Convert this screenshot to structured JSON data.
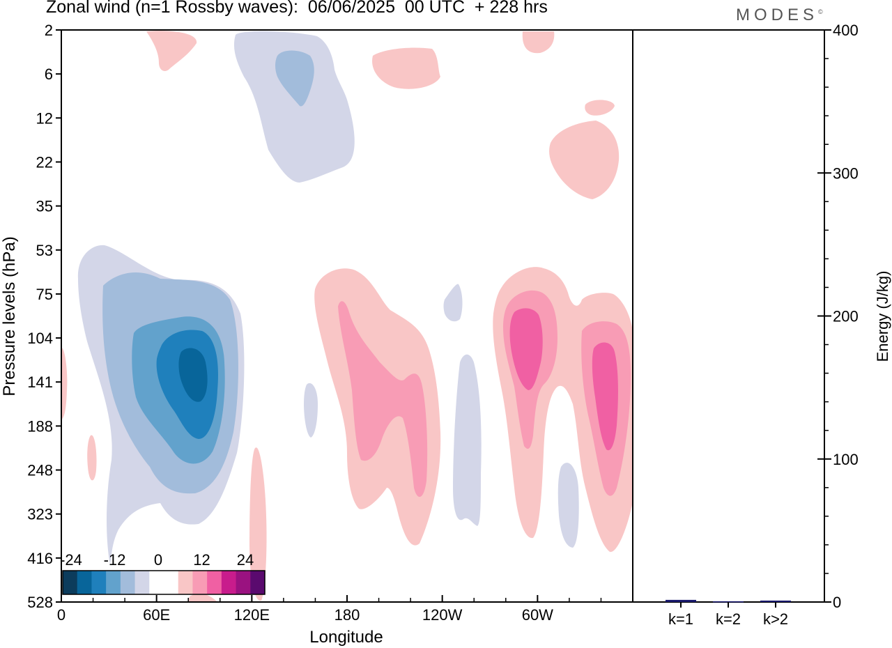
{
  "header": {
    "title": "Zonal wind (n=1 Rossby waves):  06/06/2025  00 UTC  + 228 hrs",
    "brand": "MODES",
    "brand_mark": "©"
  },
  "chart_data": [
    {
      "type": "heatmap",
      "title": "Zonal wind (n=1 Rossby waves):  06/06/2025  00 UTC  + 228 hrs",
      "xlabel": "Longitude",
      "ylabel": "Pressure levels (hPa)",
      "x_ticks": [
        "0",
        "60E",
        "120E",
        "180",
        "120W",
        "60W"
      ],
      "x_tick_values": [
        0,
        60,
        120,
        180,
        240,
        300
      ],
      "xlim": [
        0,
        360
      ],
      "y_levels": [
        "2",
        "6",
        "12",
        "22",
        "35",
        "53",
        "75",
        "104",
        "141",
        "188",
        "248",
        "323",
        "416",
        "528"
      ],
      "y_axis_reversed": true,
      "colorbar": {
        "tick_labels": [
          "-24",
          "-12",
          "0",
          "12",
          "24"
        ],
        "colors": [
          "#0c3c5c",
          "#08659a",
          "#1f80bc",
          "#62a2cc",
          "#a2bcdb",
          "#d3d6e8",
          "#ffffff",
          "#ffffff",
          "#f9c6c6",
          "#f89cb5",
          "#f060a3",
          "#c81c8c",
          "#9a1280",
          "#5a0a6e"
        ]
      },
      "features": [
        {
          "sign": "negative",
          "longitude_center": 75,
          "pressure_center_hPa": 141,
          "peak_value": -24
        },
        {
          "sign": "positive",
          "longitude_center": 195,
          "pressure_center_hPa": 141,
          "peak_value": 12
        },
        {
          "sign": "positive",
          "longitude_center": 280,
          "pressure_center_hPa": 104,
          "peak_value": 18
        },
        {
          "sign": "positive",
          "longitude_center": 340,
          "pressure_center_hPa": 141,
          "peak_value": 18
        },
        {
          "sign": "negative",
          "longitude_center": 130,
          "pressure_center_hPa": 6,
          "peak_value": -6
        },
        {
          "sign": "positive",
          "longitude_center": 320,
          "pressure_center_hPa": 22,
          "peak_value": 6
        }
      ],
      "grid": false
    },
    {
      "type": "bar",
      "ylabel": "Energy (J/kg)",
      "categories": [
        "k=1",
        "k=2",
        "k>2"
      ],
      "values": [
        1.5,
        0.5,
        1
      ],
      "ylim": [
        0,
        400
      ],
      "y_ticks": [
        "0",
        "100",
        "200",
        "300",
        "400"
      ],
      "bar_color": "#1a1a6e"
    }
  ]
}
